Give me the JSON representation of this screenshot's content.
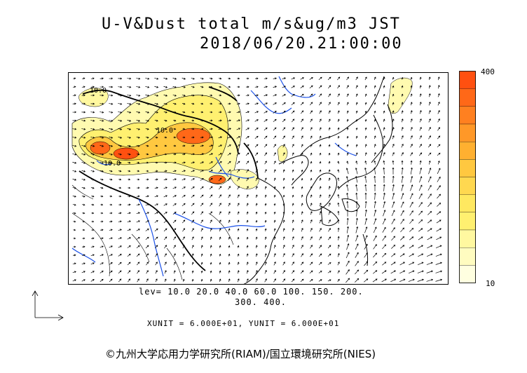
{
  "header": {
    "title": "U-V&Dust total m/s&ug/m3 JST",
    "datetime": "2018/06/20.21:00:00"
  },
  "colorbar": {
    "max_label": "400",
    "min_label": "10",
    "colors": [
      "#ffffe0",
      "#fffcc0",
      "#fff8a0",
      "#fff070",
      "#ffe860",
      "#ffd850",
      "#ffc840",
      "#ffb030",
      "#ff9828",
      "#ff8020",
      "#ff6818",
      "#ff5010"
    ]
  },
  "legend": {
    "levels_line1": "lev= 10.0 20.0 40.0 60.0 100. 150. 200.",
    "levels_line2": "300. 400.",
    "units_line": "XUNIT = 6.000E+01, YUNIT = 6.000E+01"
  },
  "map": {
    "contour_labels": [
      "10.0",
      "10.0",
      "10.0"
    ]
  },
  "footer": {
    "copyright": "©九州大学応用力学研究所(RIAM)/国立環境研究所(NIES)"
  }
}
